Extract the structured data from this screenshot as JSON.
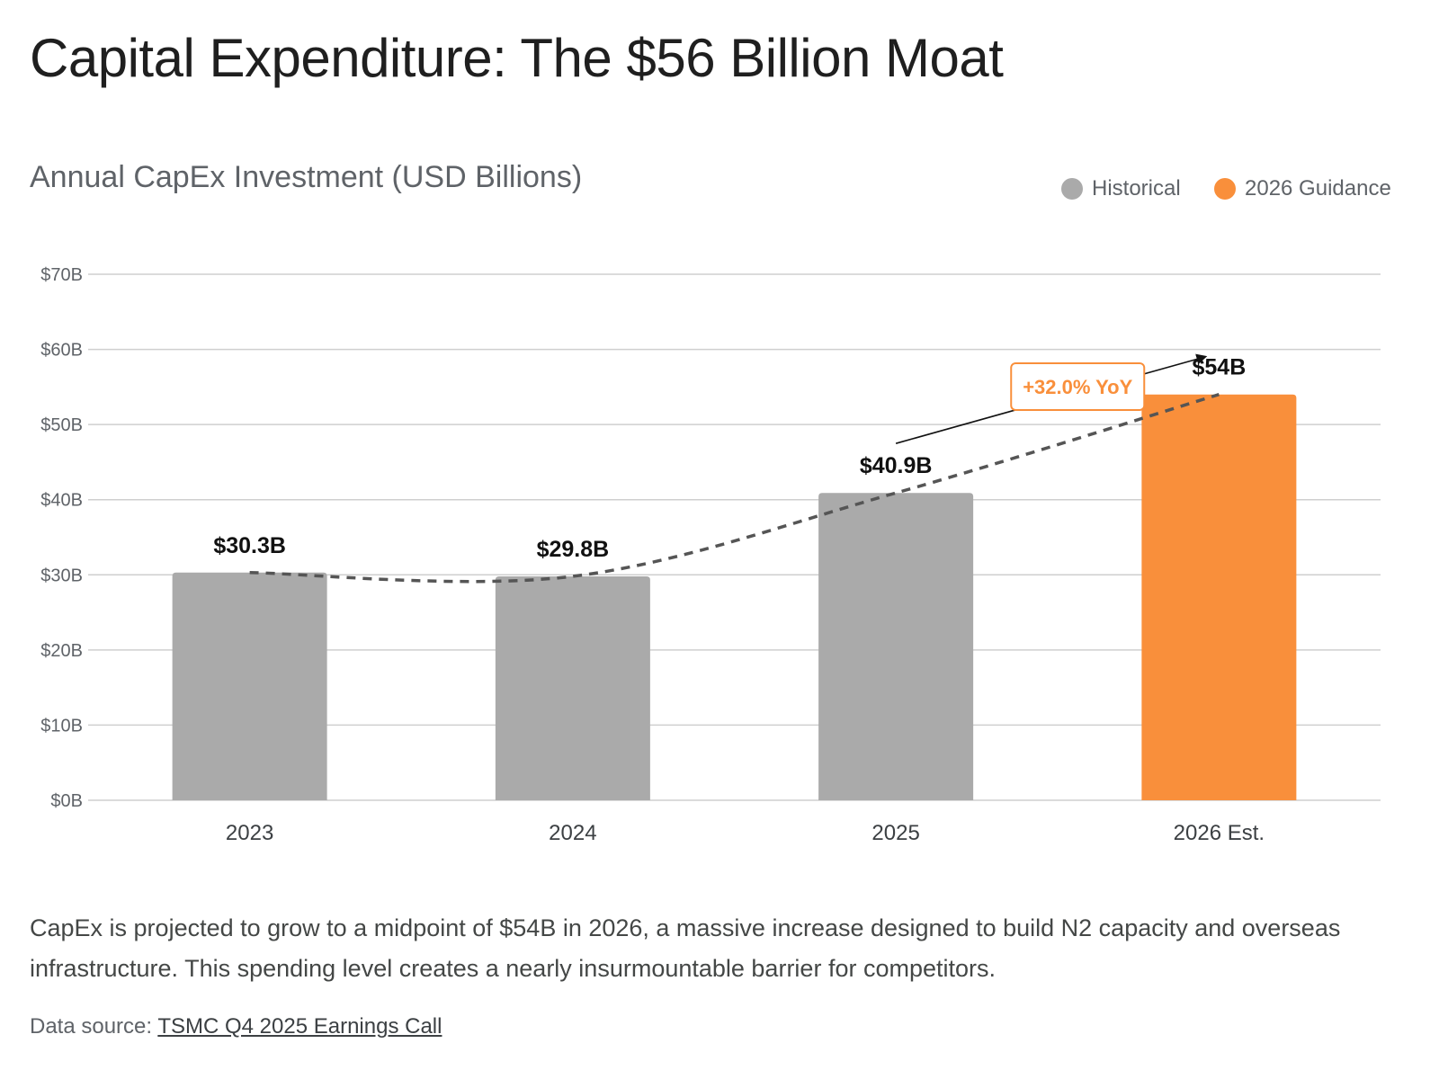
{
  "title": "Capital Expenditure: The $56 Billion Moat",
  "subtitle": "Annual CapEx Investment (USD Billions)",
  "legend": {
    "historical": "Historical",
    "guidance": "2026 Guidance",
    "historical_color": "#aaaaaa",
    "guidance_color": "#f98f3b"
  },
  "chart_data": {
    "type": "bar",
    "categories": [
      "2023",
      "2024",
      "2025",
      "2026 Est."
    ],
    "values": [
      30.3,
      29.8,
      40.9,
      54
    ],
    "value_labels": [
      "$30.3B",
      "$29.8B",
      "$40.9B",
      "$54B"
    ],
    "bar_kinds": [
      "historical",
      "historical",
      "historical",
      "guidance"
    ],
    "ylim": [
      0,
      70
    ],
    "yticks": [
      0,
      10,
      20,
      30,
      40,
      50,
      60,
      70
    ],
    "ytick_labels": [
      "$0B",
      "$10B",
      "$20B",
      "$30B",
      "$40B",
      "$50B",
      "$60B",
      "$70B"
    ],
    "trendline": "dashed",
    "annotation": {
      "text": "+32.0% YoY",
      "from_category": "2025",
      "to_category": "2026 Est."
    },
    "grid": true,
    "legend_position": "top-right",
    "xlabel": "",
    "ylabel": ""
  },
  "caption": "CapEx is projected to grow to a midpoint of $54B in 2026, a massive increase designed to build N2 capacity and overseas infrastructure. This spending level creates a nearly insurmountable barrier for competitors.",
  "source": {
    "prefix": "Data source:",
    "link_text": "TSMC Q4 2025 Earnings Call"
  }
}
